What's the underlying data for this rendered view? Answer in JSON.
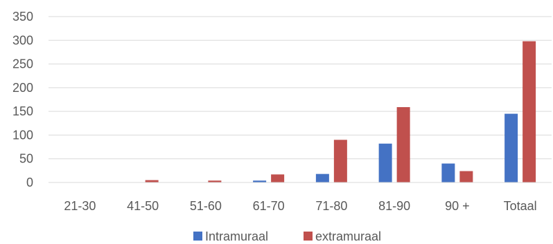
{
  "chart_data": {
    "type": "bar",
    "title": "",
    "xlabel": "",
    "ylabel": "",
    "categories": [
      "21-30",
      "41-50",
      "51-60",
      "61-70",
      "71-80",
      "81-90",
      "90 +",
      "Totaal"
    ],
    "series": [
      {
        "name": "Intramuraal",
        "color": "#4472C4",
        "values": [
          0,
          0,
          0,
          4,
          18,
          82,
          40,
          145
        ]
      },
      {
        "name": "extramuraal",
        "color": "#C0504D",
        "values": [
          0,
          5,
          4,
          17,
          90,
          159,
          24,
          298
        ]
      }
    ],
    "ylim": [
      0,
      350
    ],
    "yticks": [
      0,
      50,
      100,
      150,
      200,
      250,
      300,
      350
    ],
    "grid": true,
    "legend_position": "bottom"
  }
}
